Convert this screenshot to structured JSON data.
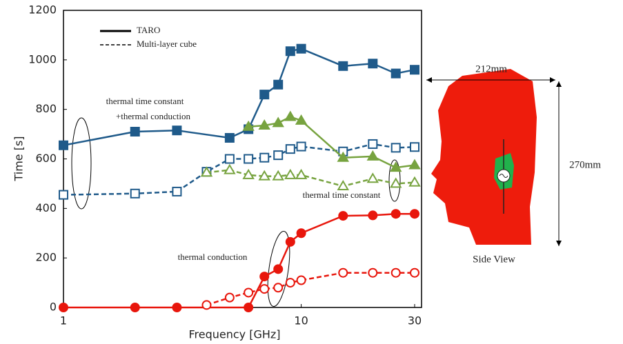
{
  "chart_data": {
    "type": "line",
    "x_label": "Frequency [GHz]",
    "y_label": "Time [s]",
    "xlim": [
      1,
      30
    ],
    "xticks": [
      1,
      10,
      30
    ],
    "xlog": true,
    "ylim": [
      0,
      1200
    ],
    "yticks": [
      0,
      200,
      400,
      600,
      800,
      1000,
      1200
    ],
    "legend": [
      {
        "name": "TARO",
        "style": "solid"
      },
      {
        "name": "Multi-layer cube",
        "style": "dashed"
      }
    ],
    "annotations": [
      "thermal time constant",
      "+thermal conduction",
      "thermal time constant",
      "thermal conduction"
    ],
    "series": [
      {
        "style": "solid",
        "marker": "square",
        "filled": true,
        "color": "#1f5a8a",
        "x": [
          1,
          2,
          3,
          5,
          6,
          7,
          8,
          9,
          10,
          15,
          20,
          25,
          30
        ],
        "values": [
          655,
          710,
          715,
          685,
          720,
          860,
          900,
          1035,
          1045,
          975,
          985,
          945,
          960
        ]
      },
      {
        "style": "dashed",
        "marker": "square",
        "filled": false,
        "color": "#1f5a8a",
        "x": [
          1,
          2,
          3,
          4,
          5,
          6,
          7,
          8,
          9,
          10,
          15,
          20,
          25,
          30
        ],
        "values": [
          455,
          460,
          468,
          548,
          600,
          600,
          605,
          615,
          640,
          650,
          630,
          660,
          645,
          648
        ]
      },
      {
        "style": "solid",
        "marker": "triangle",
        "filled": true,
        "color": "#77a33f",
        "x": [
          6,
          7,
          8,
          9,
          10,
          15,
          20,
          25,
          30
        ],
        "values": [
          730,
          735,
          745,
          770,
          755,
          605,
          610,
          565,
          575
        ]
      },
      {
        "style": "dashed",
        "marker": "triangle",
        "filled": false,
        "color": "#77a33f",
        "x": [
          4,
          5,
          6,
          7,
          8,
          9,
          10,
          15,
          20,
          25,
          30
        ],
        "values": [
          545,
          555,
          535,
          530,
          530,
          535,
          535,
          490,
          520,
          500,
          505
        ]
      },
      {
        "style": "solid",
        "marker": "circle",
        "filled": true,
        "color": "#e8160c",
        "x": [
          1,
          2,
          3,
          6,
          7,
          8,
          9,
          10,
          15,
          20,
          25,
          30
        ],
        "values": [
          0,
          0,
          0,
          0,
          125,
          155,
          265,
          300,
          370,
          372,
          378,
          378
        ]
      },
      {
        "style": "dashed",
        "marker": "circle",
        "filled": false,
        "color": "#e8160c",
        "x": [
          4,
          5,
          6,
          7,
          8,
          9,
          10,
          15,
          20,
          25,
          30
        ],
        "values": [
          10,
          40,
          60,
          75,
          80,
          100,
          110,
          140,
          140,
          140,
          140
        ]
      }
    ]
  },
  "figure": {
    "width_label": "212mm",
    "height_label": "270mm",
    "caption": "Side View"
  }
}
